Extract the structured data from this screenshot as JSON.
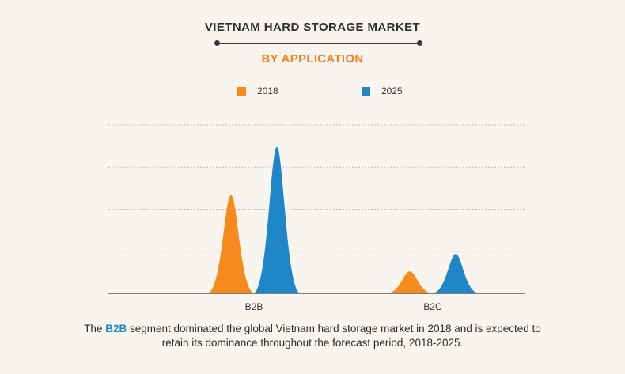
{
  "title": "VIETNAM HARD STORAGE MARKET",
  "subtitle": "BY APPLICATION",
  "colors": {
    "accent": "#f47f1f",
    "series_2018": "#f78a1d",
    "series_2025": "#1f86c8",
    "highlight": "#1f86c8"
  },
  "caption": {
    "part1": "The ",
    "highlight": "B2B",
    "part2": " segment dominated the global Vietnam hard storage market in 2018 and is expected to retain its dominance throughout the forecast period, 2018-2025."
  },
  "chart_data": {
    "type": "area",
    "categories": [
      "B2B",
      "B2C"
    ],
    "series": [
      {
        "name": "2018",
        "color": "#f78a1d",
        "values": [
          2.45,
          0.55
        ]
      },
      {
        "name": "2025",
        "color": "#1f86c8",
        "values": [
          3.65,
          0.98
        ]
      }
    ],
    "ylim": [
      0,
      4.2
    ],
    "grid": true,
    "legend": "top-center",
    "xlabel": "",
    "ylabel": ""
  }
}
